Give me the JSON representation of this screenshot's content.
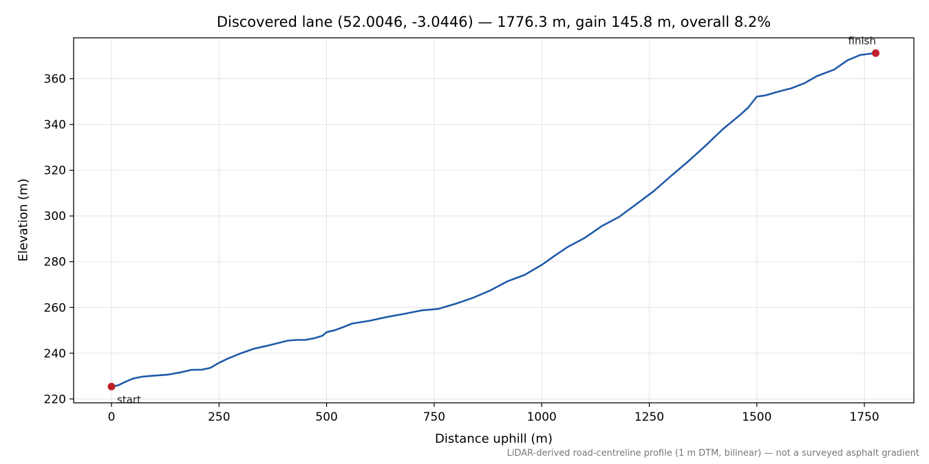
{
  "chart_data": {
    "type": "line",
    "title": "Discovered lane (52.0046, -3.0446) — 1776.3 m, gain 145.8 m, overall 8.2%",
    "xlabel": "Distance uphill (m)",
    "ylabel": "Elevation (m)",
    "footnote": "LiDAR-derived road-centreline profile (1 m DTM, bilinear) — not a surveyed asphalt gradient",
    "xlim": [
      -88,
      1865
    ],
    "ylim": [
      218.3,
      377.9
    ],
    "xticks": [
      0,
      250,
      500,
      750,
      1000,
      1250,
      1500,
      1750
    ],
    "yticks": [
      220,
      240,
      260,
      280,
      300,
      320,
      340,
      360
    ],
    "grid": true,
    "line_color": "#1f5aa8",
    "marker_color": "#c0202a",
    "series": [
      {
        "values": [
          [
            0,
            225.4
          ],
          [
            15,
            225.9
          ],
          [
            30,
            227.3
          ],
          [
            50,
            228.9
          ],
          [
            70,
            229.7
          ],
          [
            100,
            230.2
          ],
          [
            130,
            230.6
          ],
          [
            160,
            231.6
          ],
          [
            185,
            232.7
          ],
          [
            210,
            232.8
          ],
          [
            230,
            233.6
          ],
          [
            250,
            235.8
          ],
          [
            270,
            237.6
          ],
          [
            300,
            239.9
          ],
          [
            330,
            241.9
          ],
          [
            370,
            243.6
          ],
          [
            410,
            245.5
          ],
          [
            430,
            245.8
          ],
          [
            450,
            245.8
          ],
          [
            470,
            246.5
          ],
          [
            490,
            247.6
          ],
          [
            500,
            249.2
          ],
          [
            520,
            250.1
          ],
          [
            540,
            251.5
          ],
          [
            560,
            253.0
          ],
          [
            600,
            254.2
          ],
          [
            640,
            255.8
          ],
          [
            680,
            257.2
          ],
          [
            720,
            258.7
          ],
          [
            760,
            259.4
          ],
          [
            800,
            261.6
          ],
          [
            840,
            264.2
          ],
          [
            880,
            267.4
          ],
          [
            920,
            271.4
          ],
          [
            960,
            274.2
          ],
          [
            1000,
            278.6
          ],
          [
            1030,
            282.6
          ],
          [
            1060,
            286.4
          ],
          [
            1100,
            290.4
          ],
          [
            1140,
            295.6
          ],
          [
            1180,
            299.6
          ],
          [
            1220,
            305.2
          ],
          [
            1260,
            310.8
          ],
          [
            1300,
            317.4
          ],
          [
            1340,
            323.8
          ],
          [
            1380,
            330.6
          ],
          [
            1420,
            337.8
          ],
          [
            1460,
            344.0
          ],
          [
            1480,
            347.4
          ],
          [
            1500,
            352.2
          ],
          [
            1520,
            352.7
          ],
          [
            1550,
            354.4
          ],
          [
            1580,
            355.8
          ],
          [
            1610,
            358.0
          ],
          [
            1640,
            361.2
          ],
          [
            1680,
            364.0
          ],
          [
            1710,
            368.0
          ],
          [
            1740,
            370.4
          ],
          [
            1776.3,
            371.2
          ]
        ]
      }
    ],
    "annotations": [
      {
        "text": "start",
        "x": 0,
        "y": 225.4
      },
      {
        "text": "finish",
        "x": 1776.3,
        "y": 371.2
      }
    ]
  }
}
